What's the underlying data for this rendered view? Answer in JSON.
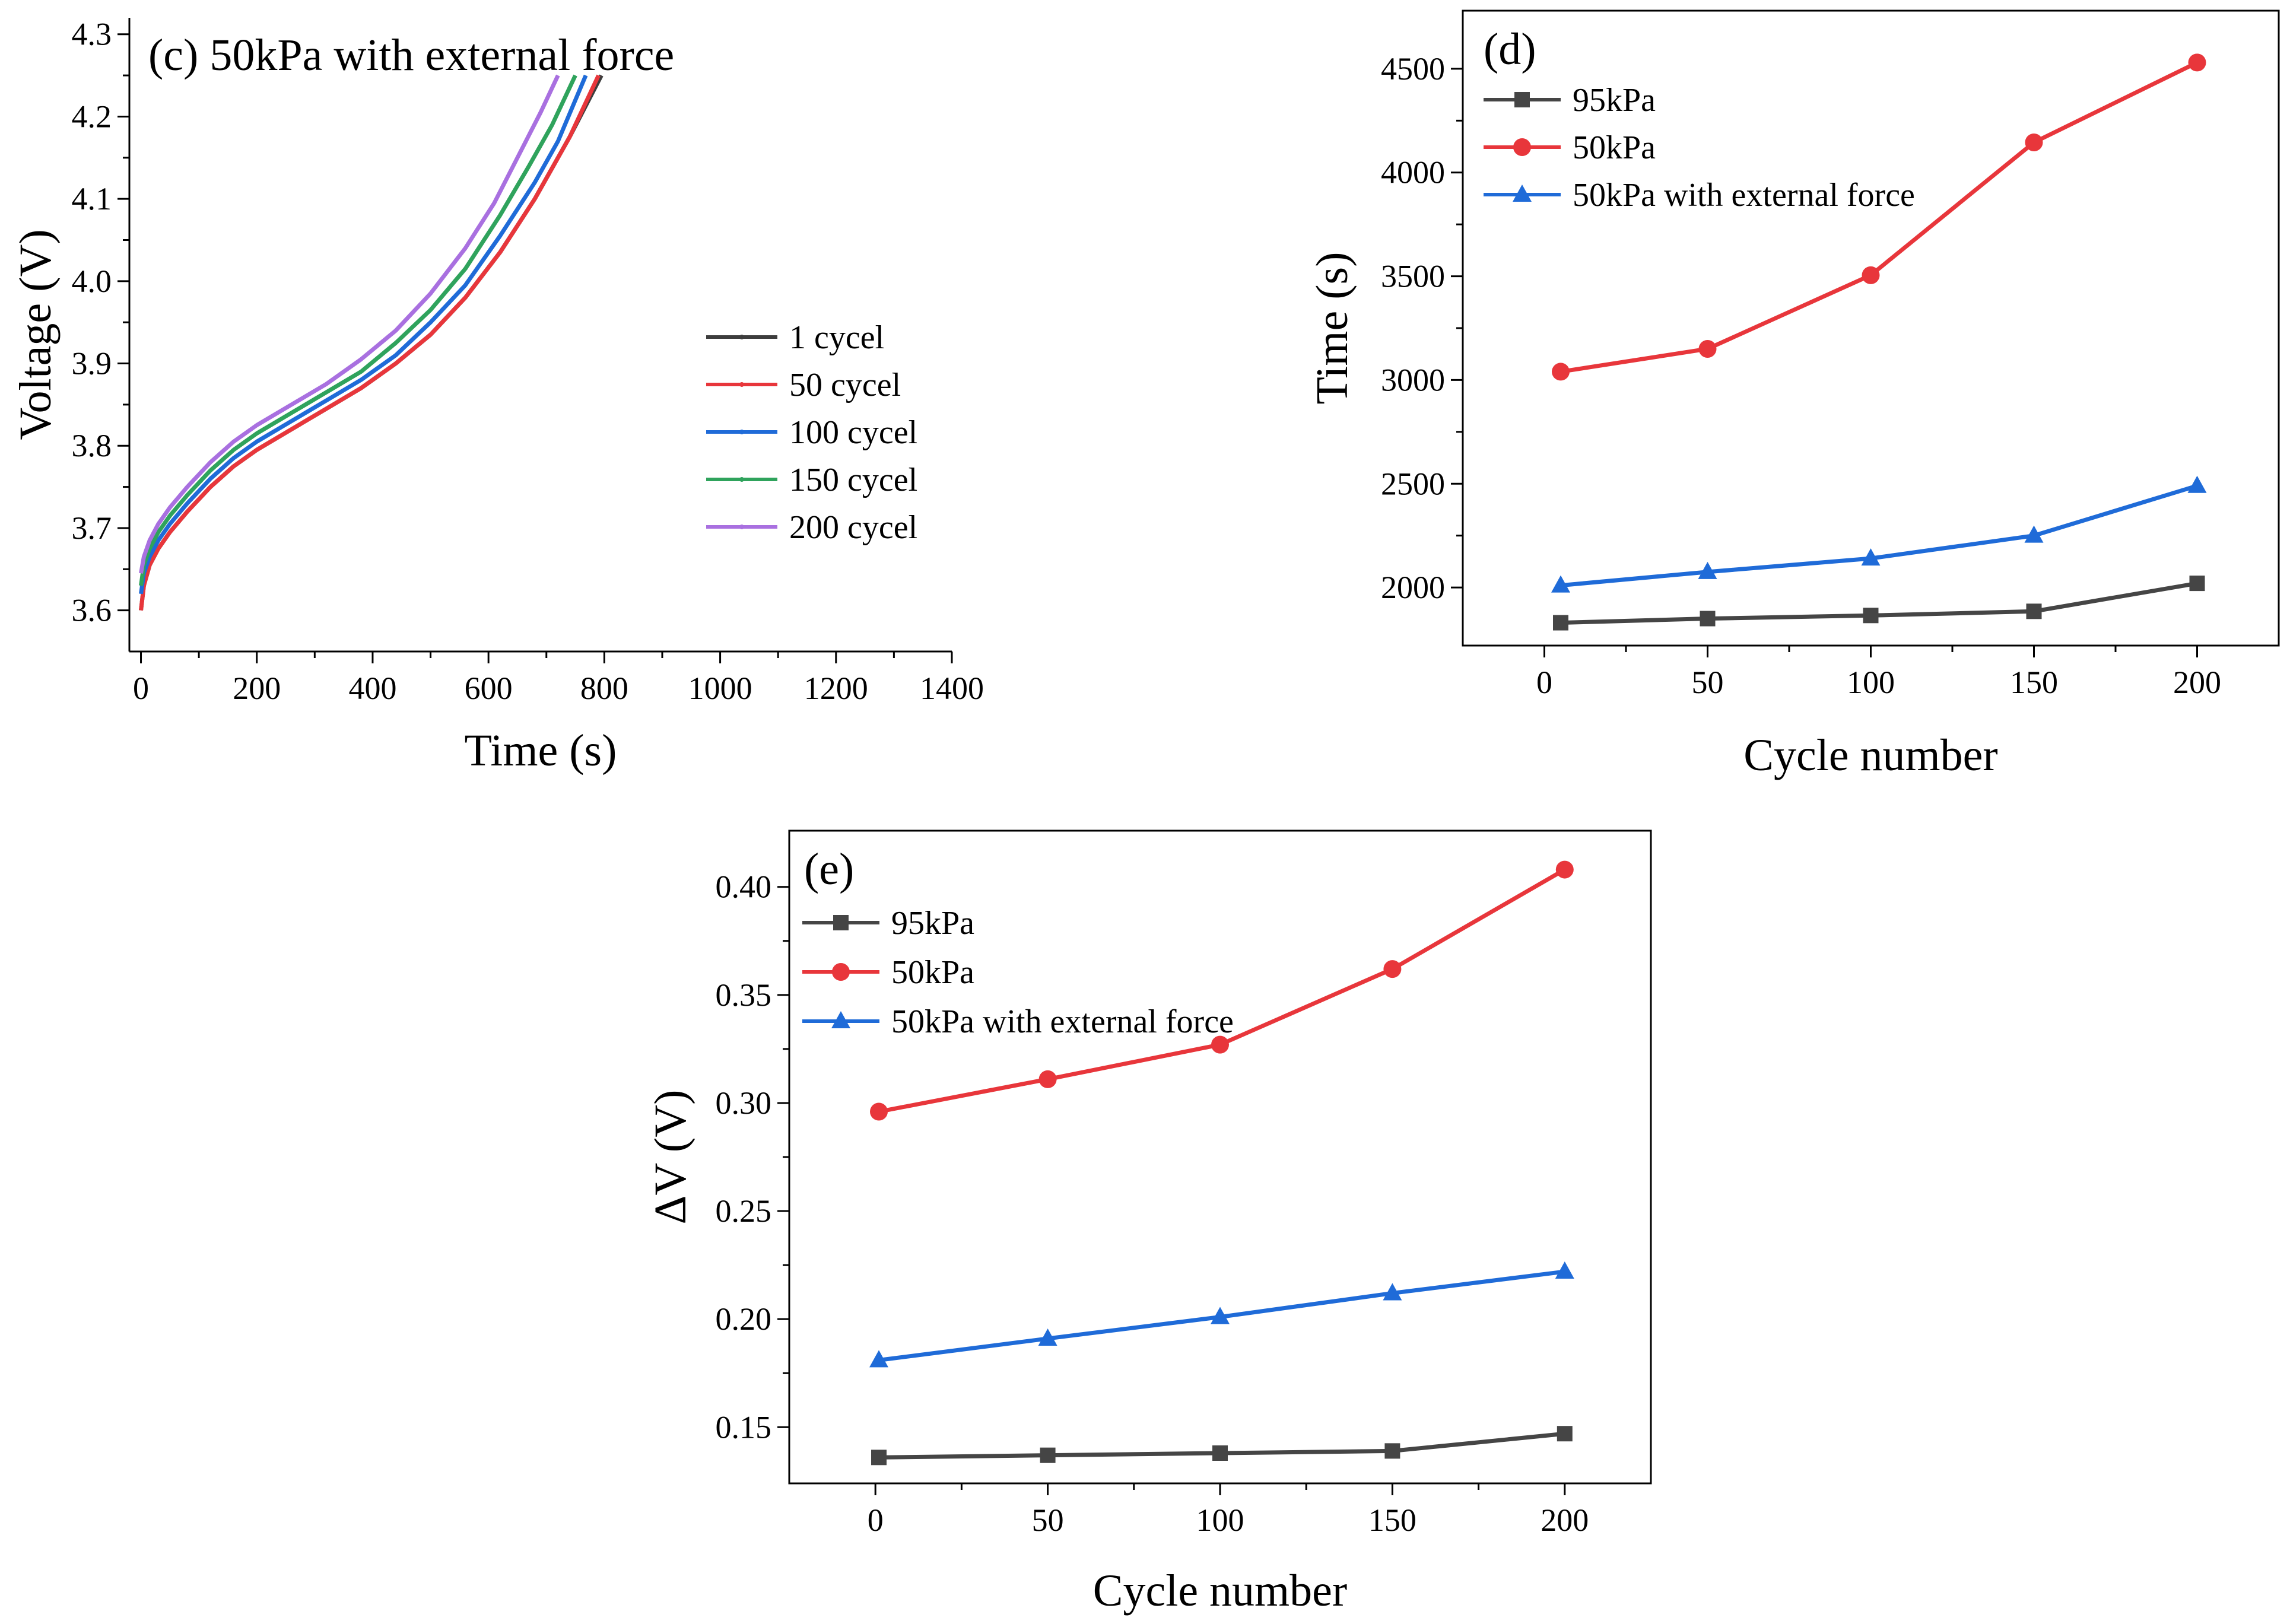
{
  "chart_data": [
    {
      "id": "c",
      "type": "line",
      "panel_label": "(c) 50kPa with external force",
      "xlabel": "Time (s)",
      "ylabel": "Voltage (V)",
      "xlim": [
        -20,
        1400
      ],
      "ylim": [
        3.55,
        4.32
      ],
      "xticks": [
        0,
        200,
        400,
        600,
        800,
        1000,
        1200,
        1400
      ],
      "yticks": [
        3.6,
        3.7,
        3.8,
        3.9,
        4.0,
        4.1,
        4.2,
        4.3
      ],
      "ytick_decimals": 1,
      "grid": false,
      "legend_position": "center-right",
      "series": [
        {
          "name": "1 cycel",
          "color": "#3d3d3d",
          "marker": "dot",
          "x": [
            0,
            5,
            15,
            30,
            50,
            80,
            120,
            160,
            200,
            260,
            320,
            380,
            440,
            500,
            560,
            620,
            680,
            740,
            795
          ],
          "y": [
            3.6,
            3.63,
            3.655,
            3.675,
            3.695,
            3.72,
            3.75,
            3.775,
            3.795,
            3.82,
            3.845,
            3.87,
            3.9,
            3.935,
            3.98,
            4.035,
            4.1,
            4.175,
            4.25
          ]
        },
        {
          "name": "50 cycel",
          "color": "#e8363b",
          "marker": "dot",
          "x": [
            0,
            5,
            15,
            30,
            50,
            80,
            120,
            160,
            200,
            260,
            320,
            380,
            440,
            500,
            560,
            620,
            680,
            740,
            790
          ],
          "y": [
            3.6,
            3.63,
            3.655,
            3.675,
            3.695,
            3.72,
            3.75,
            3.775,
            3.795,
            3.82,
            3.845,
            3.87,
            3.9,
            3.935,
            3.98,
            4.035,
            4.1,
            4.175,
            4.25
          ]
        },
        {
          "name": "100 cycel",
          "color": "#1f6bd8",
          "marker": "dot",
          "x": [
            0,
            5,
            15,
            30,
            50,
            80,
            120,
            160,
            200,
            260,
            320,
            380,
            440,
            500,
            560,
            620,
            680,
            720,
            768
          ],
          "y": [
            3.62,
            3.645,
            3.665,
            3.685,
            3.705,
            3.73,
            3.76,
            3.785,
            3.805,
            3.83,
            3.855,
            3.88,
            3.91,
            3.95,
            3.995,
            4.055,
            4.12,
            4.17,
            4.25
          ]
        },
        {
          "name": "150 cycel",
          "color": "#2fa35c",
          "marker": "dot",
          "x": [
            0,
            5,
            15,
            30,
            50,
            80,
            120,
            160,
            200,
            260,
            320,
            380,
            440,
            500,
            560,
            620,
            670,
            710,
            750
          ],
          "y": [
            3.63,
            3.655,
            3.675,
            3.695,
            3.715,
            3.74,
            3.77,
            3.795,
            3.815,
            3.84,
            3.865,
            3.89,
            3.925,
            3.965,
            4.015,
            4.08,
            4.14,
            4.19,
            4.25
          ]
        },
        {
          "name": "200 cycel",
          "color": "#a970e0",
          "marker": "dot",
          "x": [
            0,
            5,
            15,
            30,
            50,
            80,
            120,
            160,
            200,
            260,
            320,
            380,
            440,
            500,
            560,
            610,
            650,
            690,
            720
          ],
          "y": [
            3.645,
            3.665,
            3.685,
            3.705,
            3.725,
            3.75,
            3.78,
            3.805,
            3.825,
            3.85,
            3.875,
            3.905,
            3.94,
            3.985,
            4.04,
            4.095,
            4.15,
            4.205,
            4.25
          ]
        }
      ]
    },
    {
      "id": "d",
      "type": "line",
      "panel_label": "(d)",
      "xlabel": "Cycle number",
      "ylabel": "Time (s)",
      "xlim": [
        -25,
        225
      ],
      "ylim": [
        1720,
        4780
      ],
      "xticks": [
        0,
        50,
        100,
        150,
        200
      ],
      "yticks": [
        2000,
        2500,
        3000,
        3500,
        4000,
        4500
      ],
      "ytick_decimals": 0,
      "grid": false,
      "legend_position": "top-left",
      "series": [
        {
          "name": "95kPa",
          "color": "#454545",
          "marker": "square",
          "x": [
            5,
            50,
            100,
            150,
            200
          ],
          "y": [
            1830,
            1850,
            1865,
            1885,
            2020
          ]
        },
        {
          "name": "50kPa",
          "color": "#e8363b",
          "marker": "circle",
          "x": [
            5,
            50,
            100,
            150,
            200
          ],
          "y": [
            3040,
            3150,
            3505,
            4145,
            4530
          ]
        },
        {
          "name": "50kPa with external force",
          "color": "#1f6bd8",
          "marker": "triangle",
          "x": [
            5,
            50,
            100,
            150,
            200
          ],
          "y": [
            2010,
            2075,
            2140,
            2250,
            2490
          ]
        }
      ]
    },
    {
      "id": "e",
      "type": "line",
      "panel_label": "(e)",
      "xlabel": "Cycle number",
      "ylabel": "ΔV (V)",
      "xlim": [
        -25,
        225
      ],
      "ylim": [
        0.124,
        0.426
      ],
      "xticks": [
        0,
        50,
        100,
        150,
        200
      ],
      "yticks": [
        0.15,
        0.2,
        0.25,
        0.3,
        0.35,
        0.4
      ],
      "ytick_decimals": 2,
      "grid": false,
      "legend_position": "top-left",
      "series": [
        {
          "name": "95kPa",
          "color": "#454545",
          "marker": "square",
          "x": [
            1,
            50,
            100,
            150,
            200
          ],
          "y": [
            0.136,
            0.137,
            0.138,
            0.139,
            0.147
          ]
        },
        {
          "name": "50kPa",
          "color": "#e8363b",
          "marker": "circle",
          "x": [
            1,
            50,
            100,
            150,
            200
          ],
          "y": [
            0.296,
            0.311,
            0.327,
            0.362,
            0.408
          ]
        },
        {
          "name": "50kPa with external force",
          "color": "#1f6bd8",
          "marker": "triangle",
          "x": [
            1,
            50,
            100,
            150,
            200
          ],
          "y": [
            0.181,
            0.191,
            0.201,
            0.212,
            0.222
          ]
        }
      ]
    }
  ]
}
